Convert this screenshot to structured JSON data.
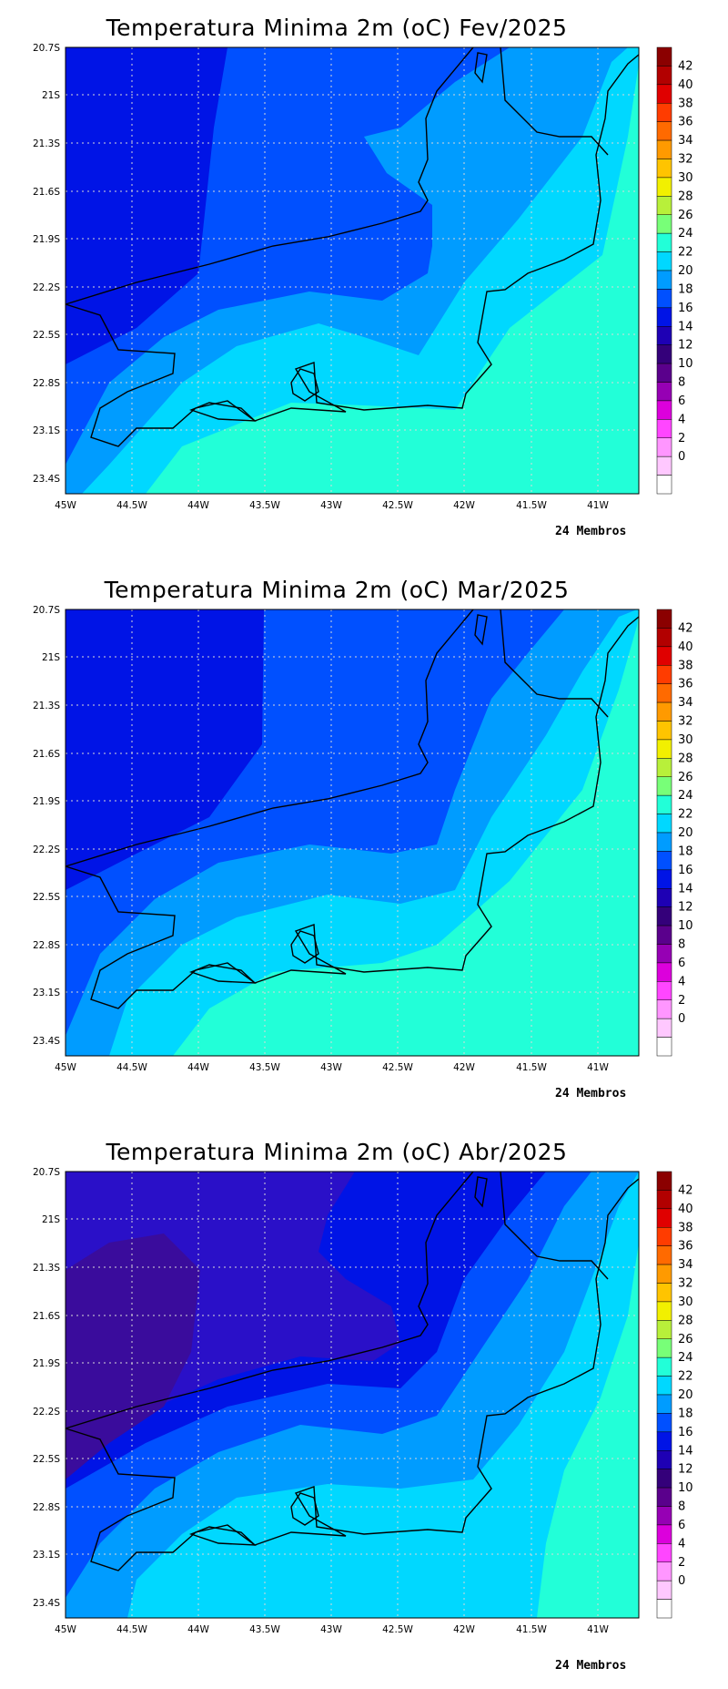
{
  "members_label": "24 Membros",
  "y_ticks": [
    "20.7S",
    "21S",
    "21.3S",
    "21.6S",
    "21.9S",
    "22.2S",
    "22.5S",
    "22.8S",
    "23.1S",
    "23.4S"
  ],
  "x_ticks": [
    "45W",
    "44.5W",
    "44W",
    "43.5W",
    "43W",
    "42.5W",
    "42W",
    "41.5W",
    "41W"
  ],
  "colorbar": {
    "labels": [
      "42",
      "40",
      "38",
      "36",
      "34",
      "32",
      "30",
      "28",
      "26",
      "24",
      "22",
      "20",
      "18",
      "16",
      "14",
      "12",
      "10",
      "8",
      "6",
      "4",
      "2",
      "0"
    ],
    "colors": [
      "#8b0000",
      "#b20000",
      "#e00000",
      "#ff3c00",
      "#ff6a00",
      "#ff9a00",
      "#ffc400",
      "#f2f000",
      "#b8f03a",
      "#78ff78",
      "#22ffd8",
      "#00d8ff",
      "#009cff",
      "#0050ff",
      "#0014e6",
      "#1e00b4",
      "#34007a",
      "#5a008c",
      "#9600b4",
      "#dc00dc",
      "#ff46ff",
      "#ff96ff",
      "#ffc8ff",
      "#ffffff"
    ]
  },
  "colors": {
    "t26": "#22ffd8",
    "t24": "#00d8ff",
    "t22": "#009cff",
    "t20": "#0050ff",
    "t18": "#0014e6",
    "t16": "#2a10c8",
    "t14": "#3a0c9c",
    "coast": "#000000",
    "grid": "#d8d8d8"
  },
  "panels": [
    {
      "title": "Temperatura Minima 2m (oC) Fev/2025"
    },
    {
      "title": "Temperatura Minima 2m (oC) Mar/2025"
    },
    {
      "title": "Temperatura Minima 2m (oC) Abr/2025"
    }
  ]
}
